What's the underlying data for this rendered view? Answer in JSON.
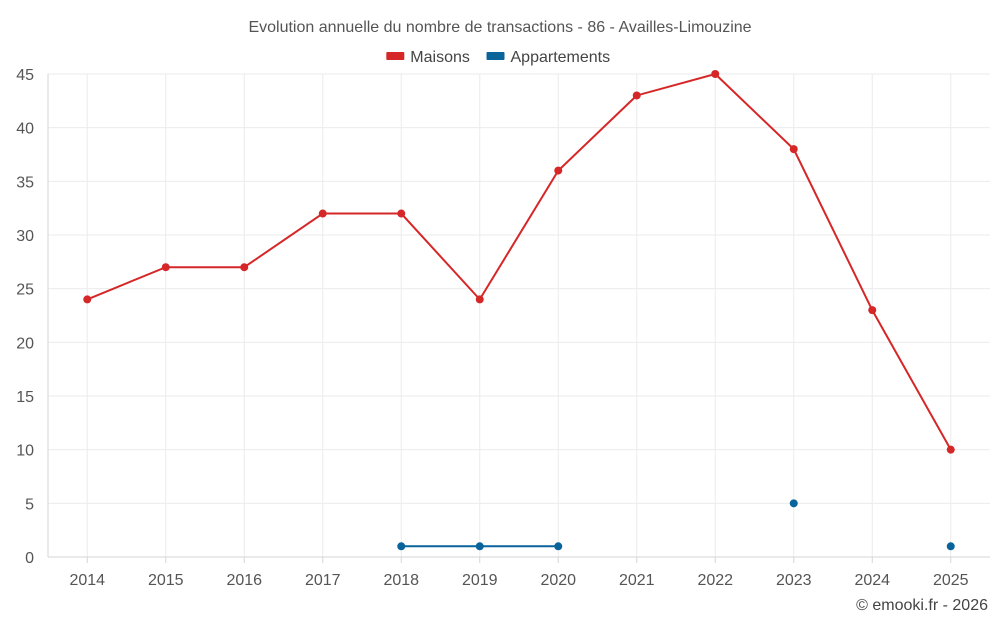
{
  "chart_data": {
    "type": "line",
    "title": "Evolution annuelle du nombre de transactions - 86 - Availles-Limouzine",
    "categories": [
      "2014",
      "2015",
      "2016",
      "2017",
      "2018",
      "2019",
      "2020",
      "2021",
      "2022",
      "2023",
      "2024",
      "2025"
    ],
    "series": [
      {
        "name": "Maisons",
        "color": "#d62728",
        "values": [
          24,
          27,
          27,
          32,
          32,
          24,
          36,
          43,
          45,
          38,
          23,
          10
        ]
      },
      {
        "name": "Appartements",
        "color": "#08649b",
        "values": [
          null,
          null,
          null,
          null,
          1,
          1,
          1,
          null,
          null,
          5,
          null,
          1
        ]
      }
    ],
    "ylim": [
      0,
      45
    ],
    "yticks": [
      0,
      5,
      10,
      15,
      20,
      25,
      30,
      35,
      40,
      45
    ],
    "legend_position": "top-center",
    "grid": true,
    "xlabel": "",
    "ylabel": ""
  },
  "copyright": "© emooki.fr - 2026"
}
